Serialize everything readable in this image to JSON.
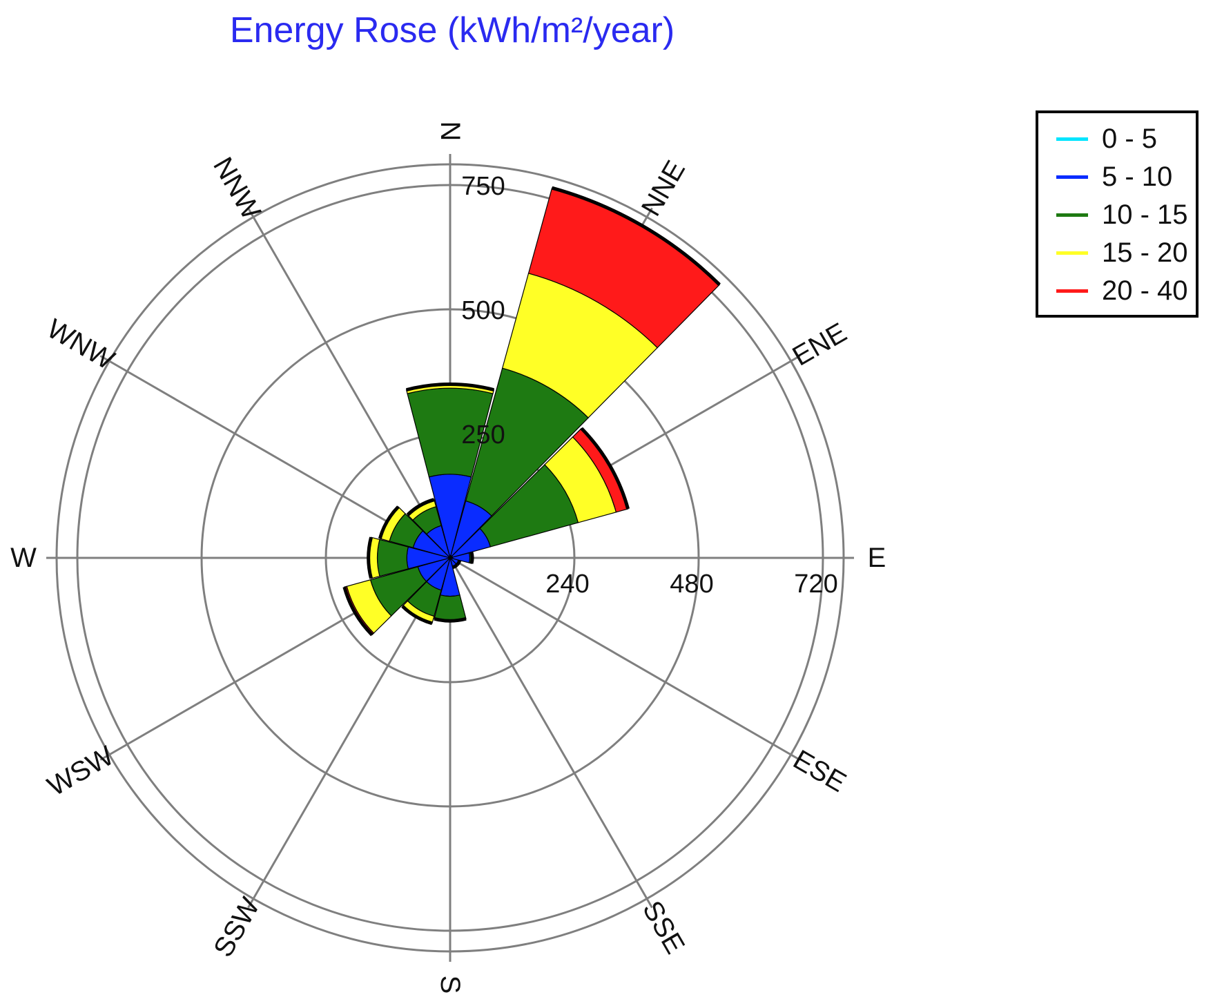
{
  "chart_data": {
    "type": "polar-stacked-bar",
    "title": "Energy Rose (kWh/m²/year)",
    "directions": [
      "N",
      "NNE",
      "ENE",
      "E",
      "ESE",
      "SSE",
      "S",
      "SSW",
      "WSW",
      "W",
      "WNW",
      "NNW"
    ],
    "direction_labels": {
      "N": "N",
      "NNE": "NNE",
      "ENE": "ENE",
      "E": "E",
      "ESE": "ESE",
      "SSE": "SSE",
      "S": "S",
      "SSW": "SSW",
      "WSW": "WSW",
      "W": "W",
      "WNW": "WNW",
      "NNW": "NNW"
    },
    "north_ticks": [
      "250",
      "500",
      "750"
    ],
    "east_ticks": [
      "240",
      "480",
      "720"
    ],
    "rmax": 800,
    "series": [
      {
        "name": "0 - 5",
        "color": "#00e5ff",
        "values": [
          5,
          5,
          5,
          5,
          3,
          3,
          3,
          3,
          3,
          3,
          3,
          3
        ]
      },
      {
        "name": "5 - 10",
        "color": "#0a2cff",
        "values": [
          165,
          115,
          80,
          35,
          15,
          15,
          75,
          65,
          65,
          85,
          75,
          65
        ]
      },
      {
        "name": "10 - 15",
        "color": "#1e7a12",
        "values": [
          175,
          280,
          185,
          5,
          2,
          2,
          50,
          55,
          100,
          60,
          50,
          40
        ]
      },
      {
        "name": "15 - 20",
        "color": "#ffff26",
        "values": [
          8,
          200,
          80,
          0,
          0,
          0,
          0,
          15,
          50,
          18,
          20,
          12
        ]
      },
      {
        "name": "20 - 40",
        "color": "#ff1a1a",
        "values": [
          0,
          180,
          25,
          0,
          0,
          0,
          0,
          0,
          5,
          0,
          0,
          3
        ]
      }
    ],
    "grid": true,
    "legend_position": "top-right"
  }
}
